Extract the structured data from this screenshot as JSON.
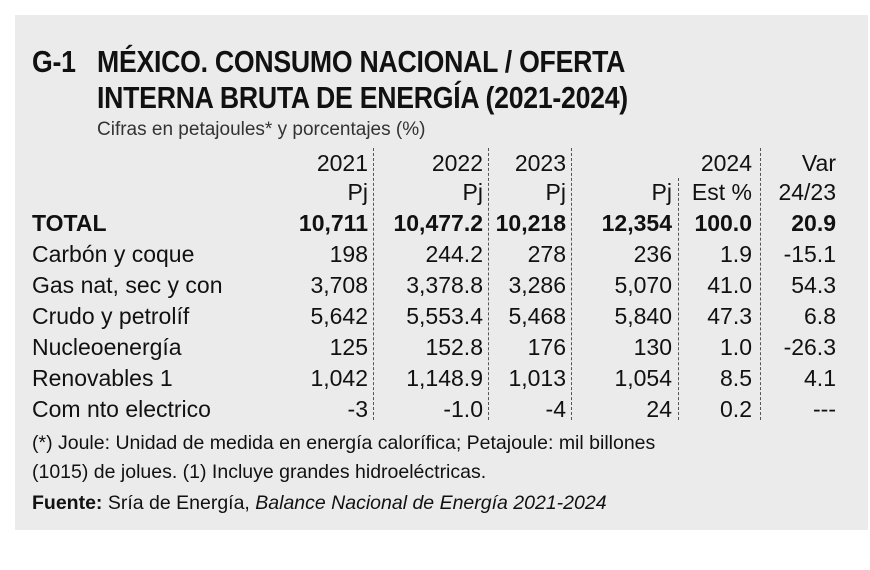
{
  "header": {
    "code": "G-1",
    "title_lines": [
      "MÉXICO. CONSUMO NACIONAL / OFERTA",
      "INTERNA BRUTA DE ENERGÍA (2021-2024)"
    ],
    "subtitle": "Cifras en petajoules* y porcentajes (%)"
  },
  "table": {
    "year_headers": [
      "2021",
      "2022",
      "2023",
      "2024",
      "Var"
    ],
    "unit_headers": [
      "Pj",
      "Pj",
      "Pj",
      "Pj",
      "Est %",
      "24/23"
    ],
    "rows": [
      [
        "TOTAL",
        "10,711",
        "10,477.2",
        "10,218",
        "12,354",
        "100.0",
        "20.9"
      ],
      [
        "Carbón y coque",
        "198",
        "244.2",
        "278",
        "236",
        "1.9",
        "-15.1"
      ],
      [
        "Gas nat, sec y con",
        "3,708",
        "3,378.8",
        "3,286",
        "5,070",
        "41.0",
        "54.3"
      ],
      [
        "Crudo y petrolíf",
        "5,642",
        "5,553.4",
        "5,468",
        "5,840",
        "47.3",
        "6.8"
      ],
      [
        "Nucleoenergía",
        "125",
        "152.8",
        "176",
        "130",
        "1.0",
        "-26.3"
      ],
      [
        "Renovables 1",
        "1,042",
        "1,148.9",
        "1,013",
        "1,054",
        "8.5",
        "4.1"
      ],
      [
        "Com nto electrico",
        "-3",
        "-1.0",
        "-4",
        "24",
        "0.2",
        "---"
      ]
    ]
  },
  "notes": [
    "(*) Joule: Unidad de medida en energía calorífica; Petajoule: mil billones",
    "(1015) de jolues. (1) Incluye grandes hidroeléctricas."
  ],
  "source": {
    "label": "Fuente:",
    "text": "Sría de Energía,",
    "publication": "Balance Nacional de Energía 2021-2024"
  }
}
